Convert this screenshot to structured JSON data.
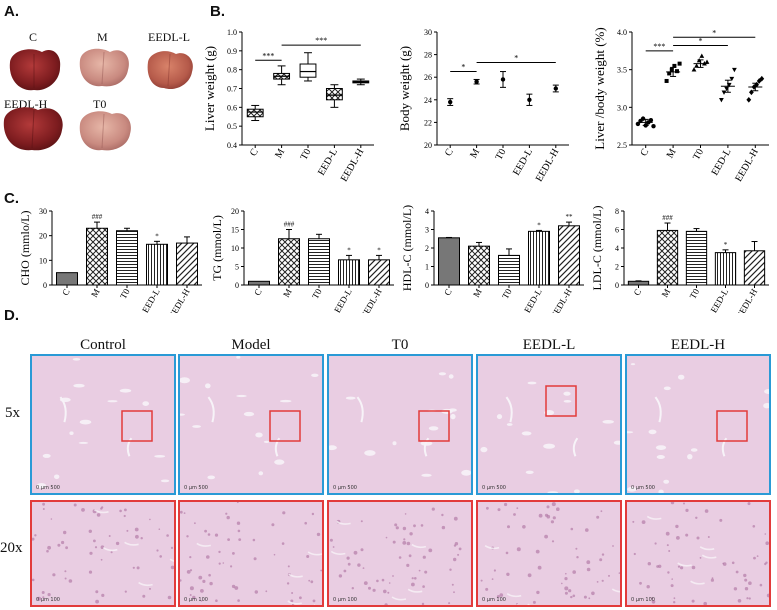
{
  "panels": {
    "A": "A.",
    "B": "B.",
    "C": "C.",
    "D": "D."
  },
  "livers": [
    "C",
    "M",
    "EEDL-L",
    "EEDL-H",
    "T0"
  ],
  "chart_data": [
    {
      "type": "box",
      "ylabel": "Liver weight (g)",
      "categories": [
        "C",
        "M",
        "T0",
        "EED-L",
        "EEDL-H"
      ],
      "ylim": [
        0.4,
        1.0
      ],
      "yticks": [
        "0.4",
        "0.5",
        "0.6",
        "0.7",
        "0.8",
        "0.9",
        "1.0"
      ],
      "boxes": [
        {
          "min": 0.53,
          "q1": 0.55,
          "median": 0.575,
          "q3": 0.59,
          "max": 0.61
        },
        {
          "min": 0.72,
          "q1": 0.75,
          "median": 0.765,
          "q3": 0.78,
          "max": 0.82
        },
        {
          "min": 0.74,
          "q1": 0.76,
          "median": 0.79,
          "q3": 0.83,
          "max": 0.89
        },
        {
          "min": 0.6,
          "q1": 0.64,
          "median": 0.665,
          "q3": 0.7,
          "max": 0.72
        },
        {
          "min": 0.72,
          "q1": 0.73,
          "median": 0.735,
          "q3": 0.74,
          "max": 0.75
        }
      ],
      "annotations": [
        {
          "from": 0,
          "to": 1,
          "text": "***"
        },
        {
          "from": 1,
          "to": 4,
          "text": "***"
        }
      ]
    },
    {
      "type": "errorbar",
      "ylabel": "Body weight (g)",
      "categories": [
        "C",
        "M",
        "T0",
        "EED-L",
        "EEDL-H"
      ],
      "ylim": [
        20,
        30
      ],
      "yticks": [
        "20",
        "22",
        "24",
        "26",
        "28",
        "30"
      ],
      "means": [
        23.8,
        25.6,
        25.8,
        24.0,
        25.0
      ],
      "errors": [
        0.3,
        0.2,
        0.7,
        0.5,
        0.3
      ],
      "annotations": [
        {
          "from": 0,
          "to": 1,
          "text": "*"
        },
        {
          "from": 1,
          "to": 4,
          "text": "*"
        }
      ]
    },
    {
      "type": "scatter",
      "ylabel": "Liver /body weight (%)",
      "categories": [
        "C",
        "M",
        "T0",
        "EED-L",
        "EEDL-H"
      ],
      "ylim": [
        2.5,
        4.0
      ],
      "yticks": [
        "2.5",
        "3.0",
        "3.5",
        "4.0"
      ],
      "markers": [
        "circle",
        "square",
        "triangle",
        "triangle-down",
        "diamond"
      ],
      "points": [
        [
          2.78,
          2.82,
          2.85,
          2.76,
          2.8,
          2.83,
          2.75
        ],
        [
          3.35,
          3.45,
          3.5,
          3.55,
          3.48,
          3.58
        ],
        [
          3.5,
          3.55,
          3.62,
          3.68,
          3.58,
          3.6
        ],
        [
          3.1,
          3.2,
          3.25,
          3.3,
          3.38,
          3.5
        ],
        [
          3.1,
          3.2,
          3.27,
          3.3,
          3.35,
          3.38
        ]
      ],
      "means": [
        2.8,
        3.47,
        3.58,
        3.28,
        3.27
      ],
      "errors": [
        0.04,
        0.06,
        0.05,
        0.08,
        0.05
      ],
      "annotations": [
        {
          "from": 0,
          "to": 1,
          "text": "***",
          "level": 3.75
        },
        {
          "from": 1,
          "to": 3,
          "text": "*",
          "level": 3.82
        },
        {
          "from": 1,
          "to": 4,
          "text": "*",
          "level": 3.93
        }
      ]
    },
    {
      "type": "bar",
      "ylabel": "CHO (mmlo/L)",
      "categories": [
        "C",
        "M",
        "T0",
        "EED-L",
        "EEDL-H"
      ],
      "ylim": [
        0,
        30
      ],
      "yticks": [
        "0",
        "10",
        "20",
        "30"
      ],
      "values": [
        5,
        23,
        22,
        16.5,
        17
      ],
      "errors": [
        0,
        2.5,
        1,
        1.2,
        2.5
      ],
      "patterns": [
        "solid",
        "cross",
        "hline",
        "vline",
        "diag"
      ],
      "sig": [
        "",
        "###",
        "",
        "*",
        ""
      ]
    },
    {
      "type": "bar",
      "ylabel": "TG (mmol/L)",
      "categories": [
        "C",
        "M",
        "T0",
        "EED-L",
        "EEDL-H"
      ],
      "ylim": [
        0,
        20
      ],
      "yticks": [
        "0",
        "5",
        "10",
        "15",
        "20"
      ],
      "values": [
        1,
        12.5,
        12.5,
        6.8,
        6.8
      ],
      "errors": [
        0,
        2.5,
        1.2,
        1.2,
        1.2
      ],
      "patterns": [
        "solid",
        "cross",
        "hline",
        "vline",
        "diag"
      ],
      "sig": [
        "",
        "###",
        "",
        "*",
        "*"
      ]
    },
    {
      "type": "bar",
      "ylabel": "HDL-C (mmol/L)",
      "categories": [
        "C",
        "M",
        "T0",
        "EED-L",
        "EEDL-H"
      ],
      "ylim": [
        0,
        4
      ],
      "yticks": [
        "0",
        "1",
        "2",
        "3",
        "4"
      ],
      "values": [
        2.55,
        2.1,
        1.6,
        2.9,
        3.2
      ],
      "errors": [
        0.02,
        0.2,
        0.35,
        0.05,
        0.2
      ],
      "patterns": [
        "solid",
        "cross",
        "hline",
        "vline",
        "diag"
      ],
      "sig": [
        "",
        "",
        "",
        "*",
        "**"
      ]
    },
    {
      "type": "bar",
      "ylabel": "LDL-C (mmol/L)",
      "categories": [
        "C",
        "M",
        "T0",
        "EED-L",
        "EEDL-H"
      ],
      "ylim": [
        0,
        8
      ],
      "yticks": [
        "0",
        "2",
        "4",
        "6",
        "8"
      ],
      "values": [
        0.4,
        5.9,
        5.8,
        3.5,
        3.7
      ],
      "errors": [
        0.05,
        0.8,
        0.3,
        0.3,
        1.0
      ],
      "patterns": [
        "solid",
        "cross",
        "hline",
        "vline",
        "diag"
      ],
      "sig": [
        "",
        "###",
        "",
        "*",
        ""
      ]
    }
  ],
  "histology": {
    "columns": [
      "Control",
      "Model",
      "T0",
      "EEDL-L",
      "EEDL-H"
    ],
    "rows": [
      "5x",
      "20x"
    ],
    "scale_5x": "0    μm    500",
    "scale_20x": "0    μm    100",
    "colors": {
      "tissue": "#e9cde2",
      "vessel": "#f7f3f8",
      "frame_5x": "#2a9ad6",
      "frame_20x": "#e23b3b"
    }
  }
}
